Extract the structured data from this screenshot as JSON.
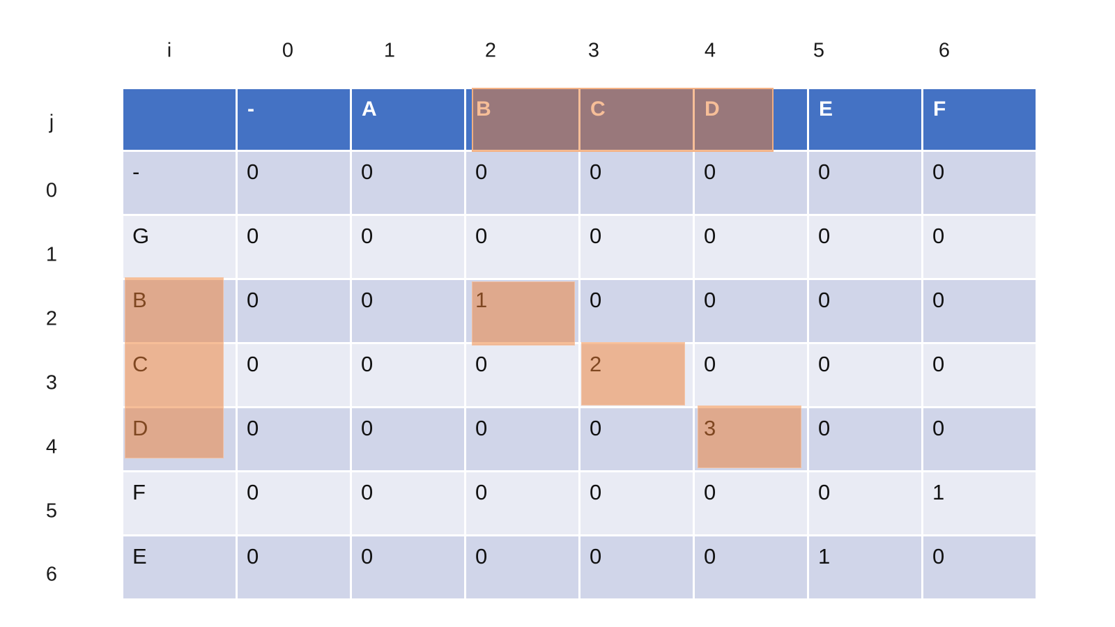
{
  "axis_labels": {
    "top": [
      "i",
      "0",
      "1",
      "2",
      "3",
      "4",
      "5",
      "6"
    ],
    "left": [
      "j",
      "0",
      "1",
      "2",
      "3",
      "4",
      "5",
      "6"
    ]
  },
  "matrix": {
    "column_headers": [
      "",
      "-",
      "A",
      "B",
      "C",
      "D",
      "E",
      "F"
    ],
    "rows": [
      {
        "label": "-",
        "values": [
          "0",
          "0",
          "0",
          "0",
          "0",
          "0",
          "0"
        ]
      },
      {
        "label": "G",
        "values": [
          "0",
          "0",
          "0",
          "0",
          "0",
          "0",
          "0"
        ]
      },
      {
        "label": "B",
        "values": [
          "0",
          "0",
          "1",
          "0",
          "0",
          "0",
          "0"
        ]
      },
      {
        "label": "C",
        "values": [
          "0",
          "0",
          "0",
          "2",
          "0",
          "0",
          "0"
        ]
      },
      {
        "label": "D",
        "values": [
          "0",
          "0",
          "0",
          "0",
          "3",
          "0",
          "0"
        ]
      },
      {
        "label": "F",
        "values": [
          "0",
          "0",
          "0",
          "0",
          "0",
          "0",
          "1"
        ]
      },
      {
        "label": "E",
        "values": [
          "0",
          "0",
          "0",
          "0",
          "0",
          "1",
          "0"
        ]
      }
    ],
    "highlighted": {
      "header_columns": [
        "B",
        "C",
        "D"
      ],
      "row_labels": [
        "B",
        "C",
        "D"
      ],
      "cells": [
        {
          "row": "B",
          "col": "B",
          "value": "1"
        },
        {
          "row": "C",
          "col": "C",
          "value": "2"
        },
        {
          "row": "D",
          "col": "D",
          "value": "3"
        }
      ]
    }
  },
  "colors": {
    "header_fill": "#4472C4",
    "header_text": "#FFFFFF",
    "band_dark": "#D0D5E9",
    "band_light": "#E9EBF4",
    "cell_text": "#111111",
    "highlight_fill": "#ED7D31",
    "highlight_opacity": 0.5,
    "highlight_border": "#F4B183"
  }
}
